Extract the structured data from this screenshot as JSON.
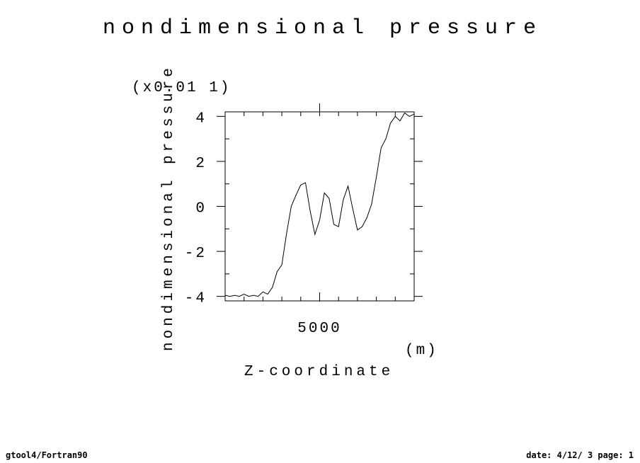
{
  "title": "nondimensional pressure",
  "scale_label": "(x0.01 1)",
  "footer_left": "gtool4/Fortran90",
  "footer_right": "date: 4/12/ 3 page: 1",
  "chart_data": {
    "type": "line",
    "title": "nondimensional pressure",
    "xlabel": "Z-coordinate",
    "xunit": "(m)",
    "ylabel": "nondimensional pressure",
    "yscale_label": "(x0.01 1)",
    "xlim": [
      0,
      10000
    ],
    "ylim": [
      -4.2,
      4.2
    ],
    "xticks": [
      5000
    ],
    "xtick_labels": [
      "5000"
    ],
    "yticks": [
      -4,
      -2,
      0,
      2,
      4
    ],
    "ytick_labels": [
      "-4",
      "-2",
      "0",
      "2",
      "4"
    ],
    "grid": false,
    "legend": "none",
    "line_color": "#000000",
    "series": [
      {
        "x": [
          0,
          250,
          500,
          750,
          1000,
          1250,
          1500,
          1750,
          2000,
          2250,
          2500,
          2750,
          3000,
          3250,
          3500,
          3750,
          4000,
          4250,
          4500,
          4750,
          5000,
          5250,
          5500,
          5750,
          6000,
          6250,
          6500,
          6750,
          7000,
          7250,
          7500,
          7750,
          8000,
          8250,
          8500,
          8750,
          9000,
          9250,
          9500,
          9750,
          10000
        ],
        "y": [
          -3.95,
          -4.0,
          -3.95,
          -4.0,
          -3.9,
          -4.0,
          -3.95,
          -4.0,
          -3.8,
          -3.9,
          -3.6,
          -2.9,
          -2.6,
          -1.2,
          0.0,
          0.5,
          0.95,
          1.05,
          -0.2,
          -1.25,
          -0.6,
          0.6,
          0.35,
          -0.8,
          -0.9,
          0.3,
          0.9,
          -0.1,
          -1.05,
          -0.9,
          -0.5,
          0.1,
          1.3,
          2.6,
          3.0,
          3.7,
          4.0,
          3.8,
          4.15,
          4.0,
          4.1
        ]
      }
    ]
  }
}
